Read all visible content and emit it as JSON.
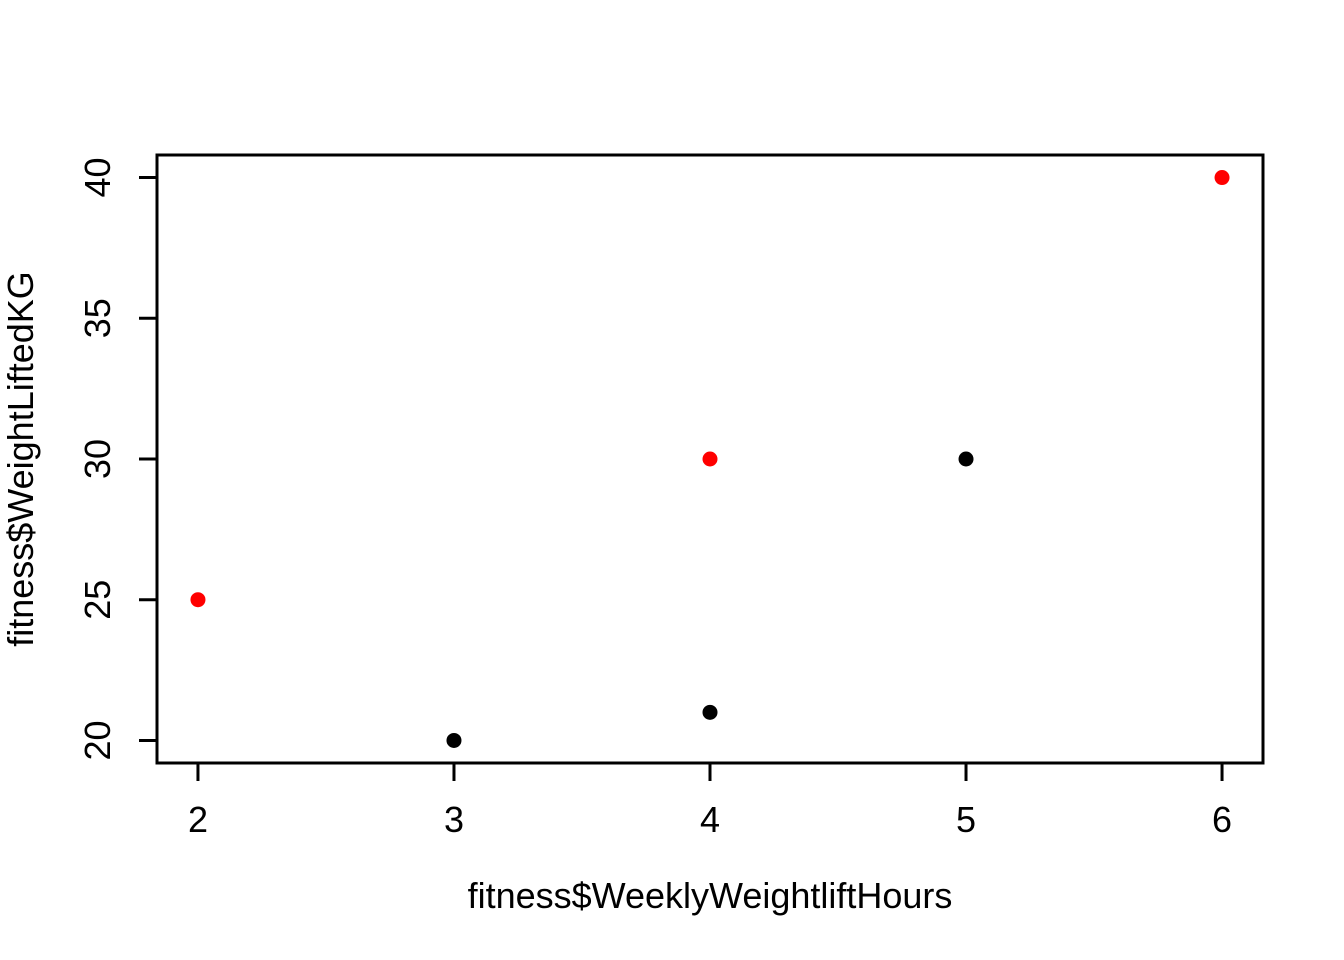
{
  "chart_data": {
    "type": "scatter",
    "title": "",
    "xlabel": "fitness$WeeklyWeightliftHours",
    "ylabel": "fitness$WeightLiftedKG",
    "x_ticks": [
      2,
      3,
      4,
      5,
      6
    ],
    "y_ticks": [
      20,
      25,
      30,
      35,
      40
    ],
    "xlim": [
      1.84,
      6.16
    ],
    "ylim": [
      19.2,
      40.8
    ],
    "grid": false,
    "legend": null,
    "point_style": "filled-circle",
    "series": [
      {
        "name": "red-points",
        "color": "#FF0000",
        "points": [
          {
            "x": 2,
            "y": 25
          },
          {
            "x": 4,
            "y": 30
          },
          {
            "x": 6,
            "y": 40
          }
        ]
      },
      {
        "name": "black-points",
        "color": "#000000",
        "points": [
          {
            "x": 3,
            "y": 20
          },
          {
            "x": 4,
            "y": 21
          },
          {
            "x": 5,
            "y": 30
          }
        ]
      }
    ],
    "colors": {
      "axis": "#000000",
      "text": "#000000",
      "background": "#FFFFFF",
      "point_red": "#FF0000",
      "point_black": "#000000"
    }
  }
}
